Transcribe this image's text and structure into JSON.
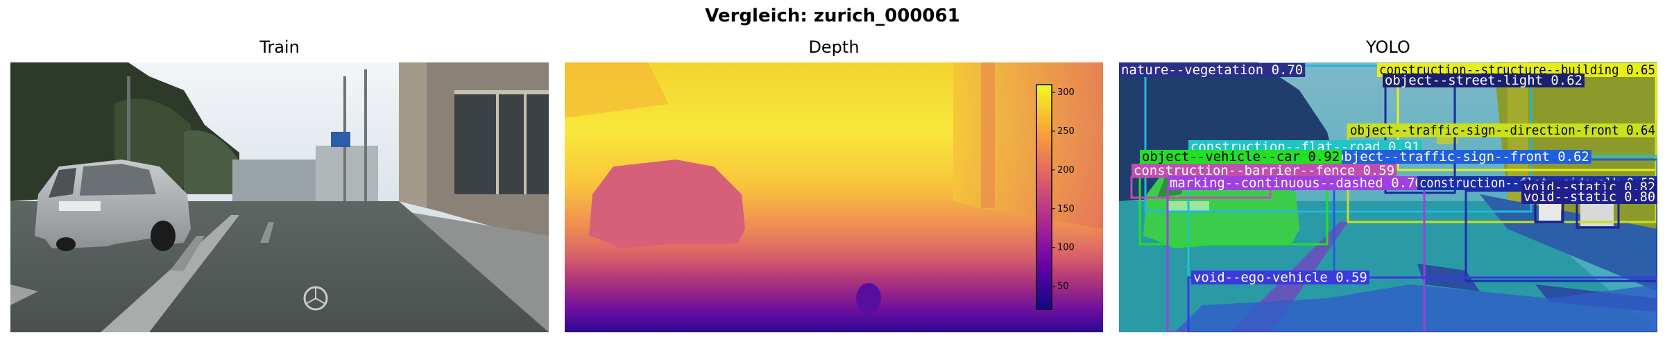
{
  "suptitle": "Vergleich: zurich_000061",
  "panels": {
    "train": {
      "title": "Train"
    },
    "depth": {
      "title": "Depth"
    },
    "yolo": {
      "title": "YOLO"
    }
  },
  "colorbar": {
    "ticks": [
      "300",
      "250",
      "200",
      "150",
      "100",
      "50"
    ],
    "range": [
      20,
      310
    ],
    "colormap": "plasma"
  },
  "detections": [
    {
      "label": "nature--vegetation 0.70",
      "color": "#ffffff",
      "bg": "#2b2f8a"
    },
    {
      "label": "construction--structure--building 0.65",
      "color": "#000000",
      "bg": "#e8ee1a"
    },
    {
      "label": "object--street-light 0.62",
      "color": "#ffffff",
      "bg": "#1a1f6e"
    },
    {
      "label": "object--traffic-sign--direction-front 0.64",
      "color": "#000000",
      "bg": "#c9e01c"
    },
    {
      "label": "construction--flat--road 0.91",
      "color": "#ffffff",
      "bg": "#1fc4c4"
    },
    {
      "label": "object--traffic-sign--front 0.62",
      "color": "#ffffff",
      "bg": "#1f5fe0"
    },
    {
      "label": "object--vehicle--car 0.92",
      "color": "#000000",
      "bg": "#22e022"
    },
    {
      "label": "construction--barrier--fence 0.59",
      "color": "#ffffff",
      "bg": "#c04fb0"
    },
    {
      "label": "marking--continuous--dashed 0.76",
      "color": "#ffffff",
      "bg": "#a040e0"
    },
    {
      "label": "construction--flat--sidewalk 0.52",
      "color": "#ffffff",
      "bg": "#1a2ea8"
    },
    {
      "label": "void--static 0.82",
      "color": "#ffffff",
      "bg": "#20208a"
    },
    {
      "label": "void--static 0.80",
      "color": "#ffffff",
      "bg": "#20208a"
    },
    {
      "label": "void--ego-vehicle 0.59",
      "color": "#ffffff",
      "bg": "#3a3ae0"
    }
  ]
}
